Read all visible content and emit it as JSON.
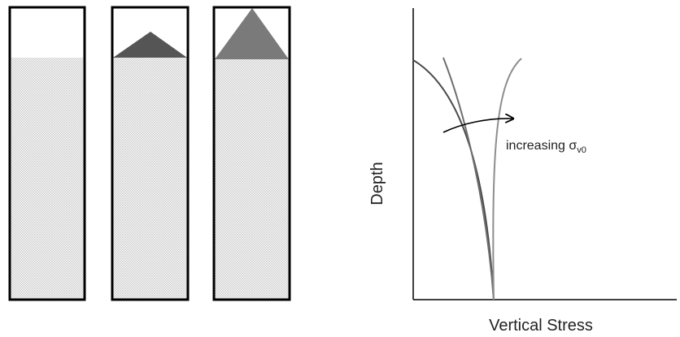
{
  "diagram": {
    "columns": [
      {
        "surcharge": "none",
        "surcharge_color": "#ffffff"
      },
      {
        "surcharge": "small-triangle",
        "surcharge_color": "#555555"
      },
      {
        "surcharge": "large-triangle",
        "surcharge_color": "#7a7a7a"
      }
    ],
    "soil_fill_color": "#e6e6e6",
    "frame_color": "#000000"
  },
  "plot": {
    "ylabel": "Depth",
    "xlabel": "Vertical Stress",
    "annotation_prefix": "increasing σ",
    "annotation_subscript": "v0",
    "curve_colors": [
      "#4a4a4a",
      "#6e6e6e",
      "#8e8e8e"
    ]
  }
}
